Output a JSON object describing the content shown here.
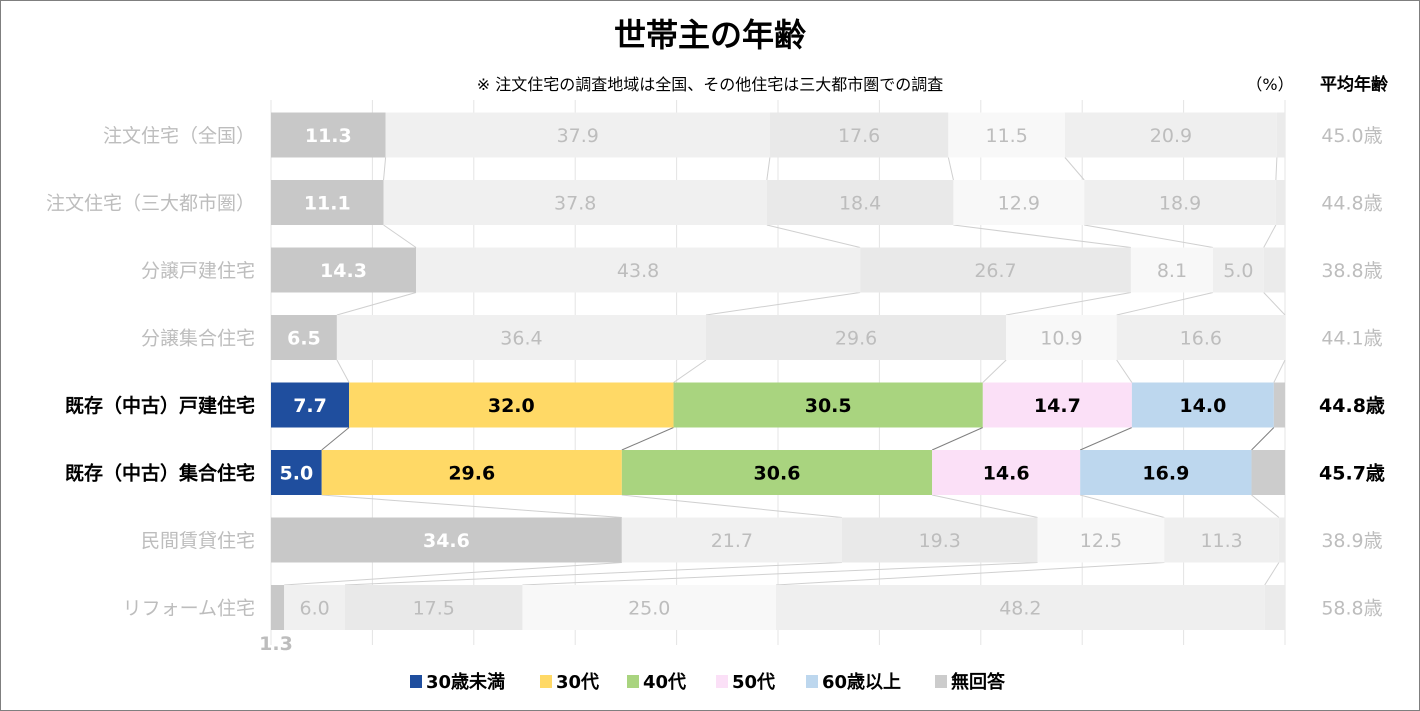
{
  "chart_data": {
    "type": "bar",
    "orientation": "horizontal-stacked-100",
    "title": "世帯主の年齢",
    "subtitle": "※ 注文住宅の調査地域は全国、その他住宅は三大都市圏での調査",
    "unit_label": "（%）",
    "avg_header": "平均年齢",
    "xlim": [
      0,
      100
    ],
    "grid": true,
    "legend_position": "bottom",
    "categories": [
      "注文住宅（全国）",
      "注文住宅（三大都市圏）",
      "分譲戸建住宅",
      "分譲集合住宅",
      "既存（中古）戸建住宅",
      "既存（中古）集合住宅",
      "民間賃貸住宅",
      "リフォーム住宅"
    ],
    "highlighted": [
      false,
      false,
      false,
      false,
      true,
      true,
      false,
      false
    ],
    "series": [
      {
        "name": "30歳未満",
        "color": "#1f4e9e",
        "values": [
          11.3,
          11.1,
          14.3,
          6.5,
          7.7,
          5.0,
          34.6,
          1.3
        ]
      },
      {
        "name": "30代",
        "color": "#ffd966",
        "values": [
          37.9,
          37.8,
          43.8,
          36.4,
          32.0,
          29.6,
          21.7,
          6.0
        ]
      },
      {
        "name": "40代",
        "color": "#a9d47f",
        "values": [
          17.6,
          18.4,
          26.7,
          29.6,
          30.5,
          30.6,
          19.3,
          17.5
        ]
      },
      {
        "name": "50代",
        "color": "#fbe0f7",
        "values": [
          11.5,
          12.9,
          8.1,
          10.9,
          14.7,
          14.6,
          12.5,
          25.0
        ]
      },
      {
        "name": "60歳以上",
        "color": "#bdd7ee",
        "values": [
          20.9,
          18.9,
          5.0,
          16.6,
          14.0,
          16.9,
          11.3,
          48.2
        ]
      },
      {
        "name": "無回答",
        "color": "#cccccc",
        "values": [
          0.8,
          0.9,
          2.1,
          0.0,
          1.1,
          3.3,
          0.6,
          2.0
        ]
      }
    ],
    "value_labels": [
      [
        "11.3",
        "37.9",
        "17.6",
        "11.5",
        "20.9"
      ],
      [
        "11.1",
        "37.8",
        "18.4",
        "12.9",
        "18.9"
      ],
      [
        "14.3",
        "43.8",
        "26.7",
        "8.1",
        "5.0"
      ],
      [
        "6.5",
        "36.4",
        "29.6",
        "10.9",
        "16.6"
      ],
      [
        "7.7",
        "32.0",
        "30.5",
        "14.7",
        "14.0"
      ],
      [
        "5.0",
        "29.6",
        "30.6",
        "14.6",
        "16.9"
      ],
      [
        "34.6",
        "21.7",
        "19.3",
        "12.5",
        "11.3"
      ],
      [
        "1.3",
        "6.0",
        "17.5",
        "25.0",
        "48.2"
      ]
    ],
    "average_age": [
      "45.0歳",
      "44.8歳",
      "38.8歳",
      "44.1歳",
      "44.8歳",
      "45.7歳",
      "38.9歳",
      "58.8歳"
    ]
  }
}
